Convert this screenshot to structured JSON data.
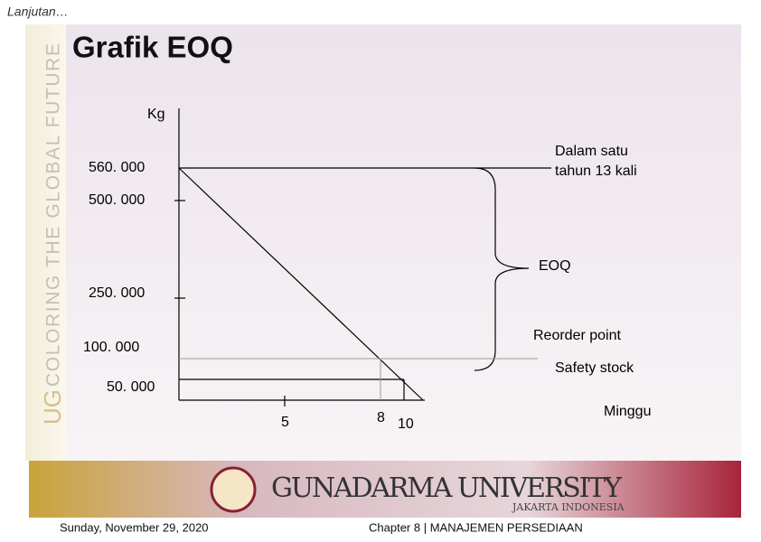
{
  "header": {
    "subtitle": "Lanjutan…",
    "title": "Grafik EOQ"
  },
  "sidebar": {
    "logo": "UG",
    "motto": "COLORING THE GLOBAL FUTURE"
  },
  "diagram": {
    "y_axis_label": "Kg",
    "x_axis_label": "Minggu",
    "y_labels": [
      "560. 000",
      "500. 000",
      "250. 000",
      "100. 000",
      "50. 000"
    ],
    "x_labels": [
      "5",
      "8",
      "10"
    ],
    "annotations": {
      "frequency": [
        "Dalam satu",
        "tahun 13 kali"
      ],
      "eoq": "EOQ",
      "reorder": "Reorder point",
      "safety": "Safety stock"
    }
  },
  "banner": {
    "name": "GUNADARMA UNIVERSITY",
    "location": "JAKARTA INDONESIA"
  },
  "footer": {
    "date": "Sunday, November 29, 2020",
    "chapter": "Chapter 8 | MANAJEMEN PERSEDIAAN"
  }
}
